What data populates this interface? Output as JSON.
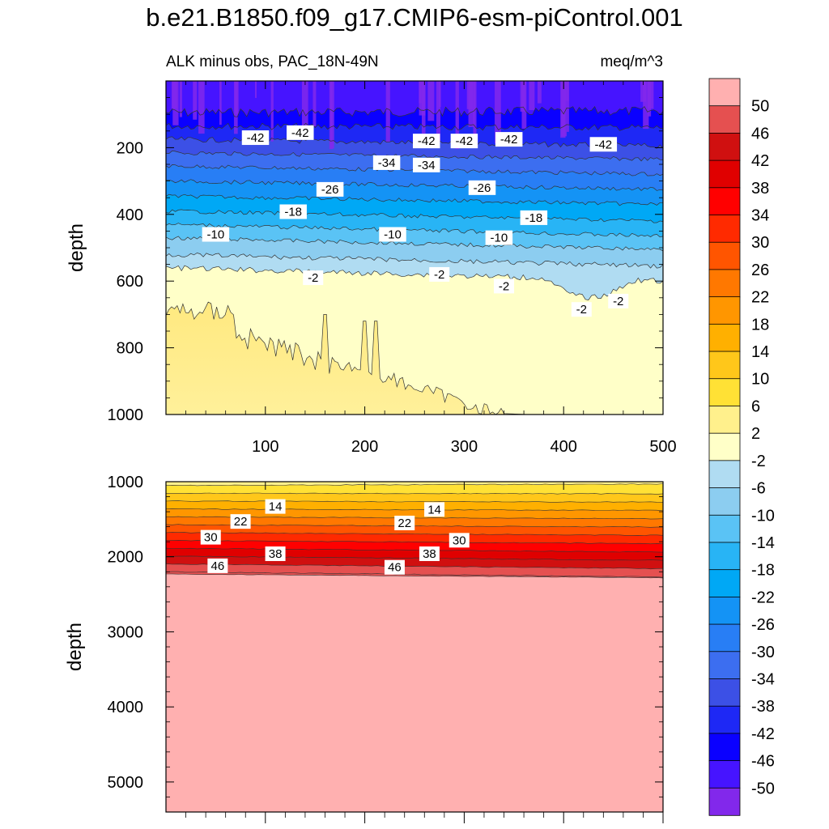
{
  "figure": {
    "title": "b.e21.B1850.f09_g17.CMIP6-esm-piControl.001",
    "subtitle_left": "ALK minus obs, PAC_18N-49N",
    "subtitle_right": "meq/m^3"
  },
  "chart_data": [
    {
      "type": "heatmap",
      "panel": "upper",
      "ylabel": "depth",
      "xlim": [
        0,
        500
      ],
      "ylim": [
        1000,
        0
      ],
      "x_ticks": [
        100,
        200,
        300,
        400,
        500
      ],
      "y_ticks": [
        200,
        400,
        600,
        800,
        1000
      ],
      "contour_interval": 4,
      "contour_labels": [
        {
          "text": "-42",
          "x": 90,
          "y": 170
        },
        {
          "text": "-42",
          "x": 135,
          "y": 155
        },
        {
          "text": "-42",
          "x": 262,
          "y": 180
        },
        {
          "text": "-42",
          "x": 300,
          "y": 180
        },
        {
          "text": "-42",
          "x": 345,
          "y": 175
        },
        {
          "text": "-42",
          "x": 440,
          "y": 190
        },
        {
          "text": "-34",
          "x": 222,
          "y": 245
        },
        {
          "text": "-34",
          "x": 262,
          "y": 252
        },
        {
          "text": "-26",
          "x": 165,
          "y": 325
        },
        {
          "text": "-26",
          "x": 318,
          "y": 320
        },
        {
          "text": "-18",
          "x": 128,
          "y": 392
        },
        {
          "text": "-18",
          "x": 370,
          "y": 410
        },
        {
          "text": "-10",
          "x": 50,
          "y": 460
        },
        {
          "text": "-10",
          "x": 228,
          "y": 460
        },
        {
          "text": "-10",
          "x": 335,
          "y": 470
        },
        {
          "text": "-2",
          "x": 148,
          "y": 590
        },
        {
          "text": "-2",
          "x": 275,
          "y": 580
        },
        {
          "text": "-2",
          "x": 340,
          "y": 615
        },
        {
          "text": "-2",
          "x": 418,
          "y": 685
        },
        {
          "text": "-2",
          "x": 455,
          "y": 660
        }
      ]
    },
    {
      "type": "heatmap",
      "panel": "lower",
      "ylabel": "depth",
      "xlim": [
        0,
        500
      ],
      "ylim": [
        5400,
        1000
      ],
      "y_ticks": [
        1000,
        2000,
        3000,
        4000,
        5000
      ],
      "contour_interval": 4,
      "contour_labels": [
        {
          "text": "14",
          "x": 110,
          "y": 1330
        },
        {
          "text": "14",
          "x": 270,
          "y": 1370
        },
        {
          "text": "22",
          "x": 75,
          "y": 1530
        },
        {
          "text": "22",
          "x": 240,
          "y": 1550
        },
        {
          "text": "30",
          "x": 45,
          "y": 1740
        },
        {
          "text": "30",
          "x": 295,
          "y": 1780
        },
        {
          "text": "38",
          "x": 110,
          "y": 1960
        },
        {
          "text": "38",
          "x": 265,
          "y": 1960
        },
        {
          "text": "46",
          "x": 52,
          "y": 2120
        },
        {
          "text": "46",
          "x": 230,
          "y": 2140
        }
      ]
    }
  ],
  "colorbar": {
    "labels": [
      "50",
      "46",
      "42",
      "38",
      "34",
      "30",
      "26",
      "22",
      "18",
      "14",
      "10",
      "6",
      "2",
      "-2",
      "-6",
      "-10",
      "-14",
      "-18",
      "-22",
      "-26",
      "-30",
      "-34",
      "-38",
      "-42",
      "-46",
      "-50"
    ],
    "colors": [
      "#ffb0b0",
      "#e55050",
      "#d01010",
      "#e00000",
      "#ff0000",
      "#ff2a00",
      "#ff5500",
      "#ff7800",
      "#ff9600",
      "#ffb000",
      "#ffc71a",
      "#ffe135",
      "#fff08c",
      "#ffffc8",
      "#b0dcf2",
      "#8ccdf0",
      "#5ac3f5",
      "#28b4f5",
      "#00a8f5",
      "#1493f5",
      "#287ef5",
      "#3c6ef0",
      "#3c50e6",
      "#1e28f5",
      "#0a00ff",
      "#4614ff",
      "#8228eb"
    ]
  }
}
